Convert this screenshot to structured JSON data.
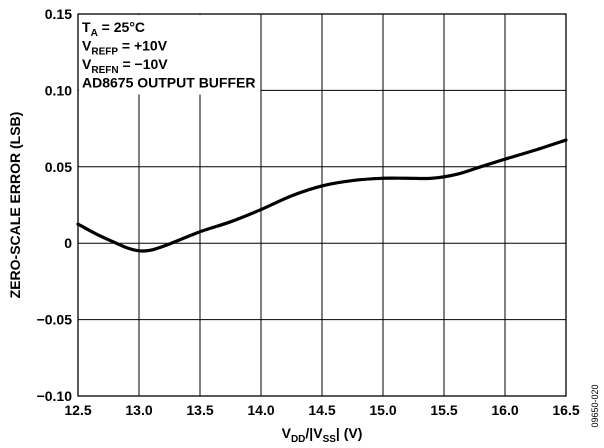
{
  "chart_data": {
    "type": "line",
    "xlabel": {
      "parts": [
        {
          "t": "V",
          "sub": false
        },
        {
          "t": "DD",
          "sub": true
        },
        {
          "t": "/|V",
          "sub": false
        },
        {
          "t": "SS",
          "sub": true
        },
        {
          "t": "| (V)",
          "sub": false
        }
      ]
    },
    "ylabel": "ZERO-SCALE ERROR (LSB)",
    "xlim": [
      12.5,
      16.5
    ],
    "ylim": [
      -0.1,
      0.15
    ],
    "x_ticks": [
      "12.5",
      "13.0",
      "13.5",
      "14.0",
      "14.5",
      "15.0",
      "15.5",
      "16.0",
      "16.5"
    ],
    "y_ticks": [
      "0.15",
      "0.10",
      "0.05",
      "0",
      "−0.05",
      "−0.10"
    ],
    "y_tick_values": [
      0.15,
      0.1,
      0.05,
      0,
      -0.05,
      -0.1
    ],
    "grid": true,
    "annotations": [
      {
        "parts": [
          {
            "t": "T",
            "sub": false
          },
          {
            "t": "A",
            "sub": true
          },
          {
            "t": " = 25°C",
            "sub": false
          }
        ]
      },
      {
        "parts": [
          {
            "t": "V",
            "sub": false
          },
          {
            "t": "REFP",
            "sub": true
          },
          {
            "t": " = +10V",
            "sub": false
          }
        ]
      },
      {
        "parts": [
          {
            "t": "V",
            "sub": false
          },
          {
            "t": "REFN",
            "sub": true
          },
          {
            "t": " = −10V",
            "sub": false
          }
        ]
      },
      {
        "parts": [
          {
            "t": "AD8675 OUTPUT BUFFER",
            "sub": false
          }
        ]
      }
    ],
    "figure_code": "09650-020",
    "series": [
      {
        "color": "#000000",
        "points": [
          [
            12.5,
            0.0125
          ],
          [
            12.65,
            0.006
          ],
          [
            12.8,
            0.0005
          ],
          [
            12.9,
            -0.003
          ],
          [
            13.0,
            -0.005
          ],
          [
            13.1,
            -0.0045
          ],
          [
            13.25,
            -0.0005
          ],
          [
            13.5,
            0.0075
          ],
          [
            13.75,
            0.014
          ],
          [
            14.0,
            0.022
          ],
          [
            14.25,
            0.031
          ],
          [
            14.5,
            0.0375
          ],
          [
            14.75,
            0.041
          ],
          [
            15.0,
            0.0425
          ],
          [
            15.2,
            0.0425
          ],
          [
            15.4,
            0.0425
          ],
          [
            15.6,
            0.045
          ],
          [
            15.8,
            0.05
          ],
          [
            16.0,
            0.055
          ],
          [
            16.25,
            0.061
          ],
          [
            16.5,
            0.0675
          ]
        ]
      }
    ]
  }
}
